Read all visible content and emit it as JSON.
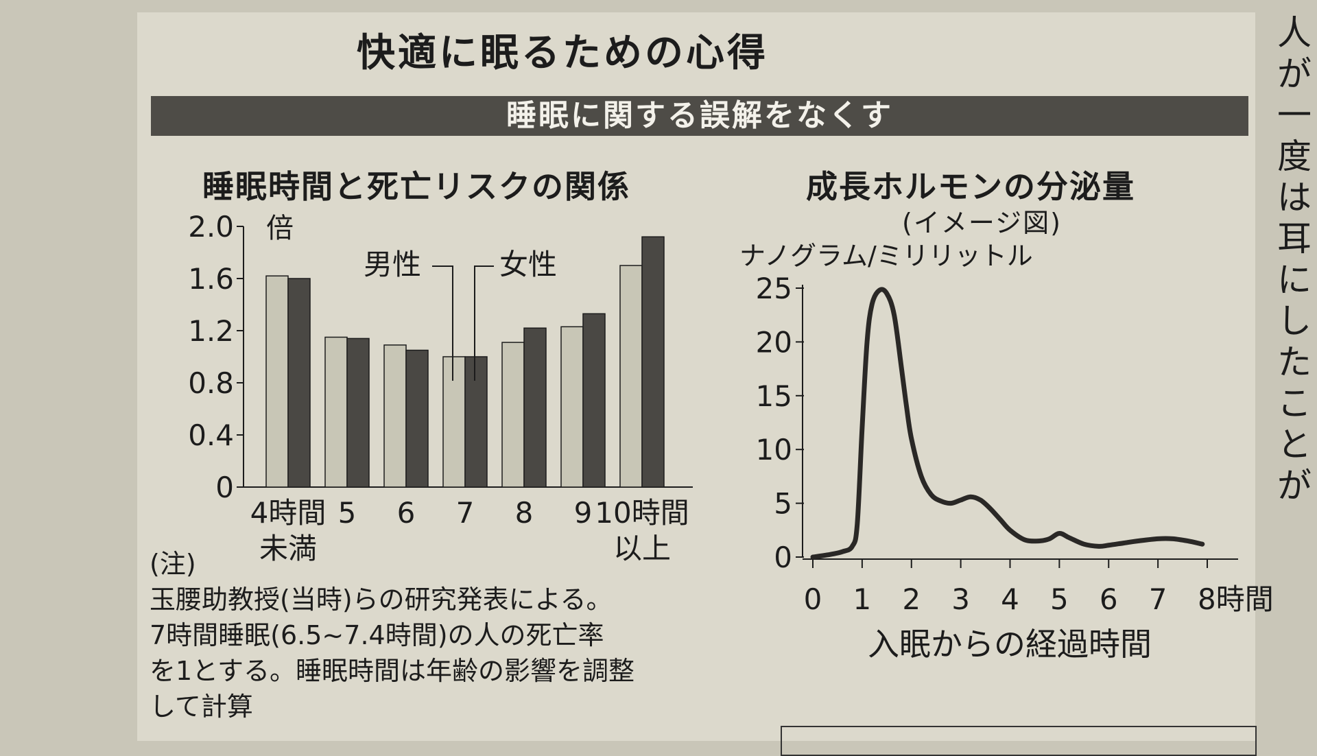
{
  "header": {
    "main_title": "快適に眠るための心得",
    "banner": "睡眠に関する誤解をなくす"
  },
  "colors": {
    "banner_bg": "#4e4c47",
    "male_bar": "#c8c6b6",
    "female_bar": "#4a4844",
    "line": "#2a2826"
  },
  "chart_data": [
    {
      "type": "bar",
      "title": "睡眠時間と死亡リスクの関係",
      "y_unit": "倍",
      "ylim": [
        0,
        2.0
      ],
      "yticks": [
        "0",
        "0.4",
        "0.8",
        "1.2",
        "1.6",
        "2.0"
      ],
      "yticks_values": [
        0,
        0.4,
        0.8,
        1.2,
        1.6,
        2.0
      ],
      "categories": [
        [
          "4時間",
          "未満"
        ],
        [
          "5"
        ],
        [
          "6"
        ],
        [
          "7"
        ],
        [
          "8"
        ],
        [
          "9"
        ],
        [
          "10時間",
          "以上"
        ]
      ],
      "series": [
        {
          "name": "男性",
          "values": [
            1.62,
            1.15,
            1.09,
            1.0,
            1.11,
            1.23,
            1.7
          ]
        },
        {
          "name": "女性",
          "values": [
            1.6,
            1.14,
            1.05,
            1.0,
            1.22,
            1.33,
            1.92
          ]
        }
      ],
      "note": [
        "(注)",
        "玉腰助教授(当時)らの研究発表による。",
        "7時間睡眠(6.5~7.4時間)の人の死亡率",
        "を1とする。睡眠時間は年齢の影響を調整",
        "して計算"
      ]
    },
    {
      "type": "line",
      "title": "成長ホルモンの分泌量",
      "subtitle": "(イメージ図)",
      "ylabel": "ナノグラム/ミリリットル",
      "xlabel": "入眠からの経過時間",
      "ylim": [
        0,
        25
      ],
      "xlim": [
        0,
        8
      ],
      "yticks": [
        "0",
        "5",
        "10",
        "15",
        "20",
        "25"
      ],
      "yticks_values": [
        0,
        5,
        10,
        15,
        20,
        25
      ],
      "xticks": [
        "0",
        "1",
        "2",
        "3",
        "4",
        "5",
        "6",
        "7",
        "8時間"
      ],
      "xticks_values": [
        0,
        1,
        2,
        3,
        4,
        5,
        6,
        7,
        8
      ],
      "x": [
        0,
        0.3,
        0.6,
        0.8,
        0.9,
        1.0,
        1.1,
        1.2,
        1.35,
        1.5,
        1.65,
        1.8,
        1.9,
        2.0,
        2.2,
        2.4,
        2.6,
        2.8,
        3.0,
        3.2,
        3.4,
        3.6,
        3.8,
        4.0,
        4.3,
        4.6,
        4.8,
        5.0,
        5.2,
        5.5,
        5.8,
        6.0,
        6.3,
        6.6,
        7.0,
        7.3,
        7.6,
        7.9
      ],
      "y": [
        0,
        0.2,
        0.5,
        1.0,
        3.0,
        12.0,
        20.0,
        23.5,
        24.8,
        24.5,
        22.5,
        17.5,
        14.0,
        11.0,
        7.5,
        5.8,
        5.2,
        5.0,
        5.3,
        5.6,
        5.3,
        4.5,
        3.5,
        2.5,
        1.6,
        1.5,
        1.7,
        2.2,
        1.8,
        1.2,
        1.0,
        1.1,
        1.3,
        1.5,
        1.7,
        1.7,
        1.5,
        1.2
      ]
    }
  ],
  "side_text": [
    "人",
    "が",
    "一",
    "度",
    "は",
    "耳",
    "に",
    "し",
    "た",
    "こ",
    "と",
    "が"
  ]
}
